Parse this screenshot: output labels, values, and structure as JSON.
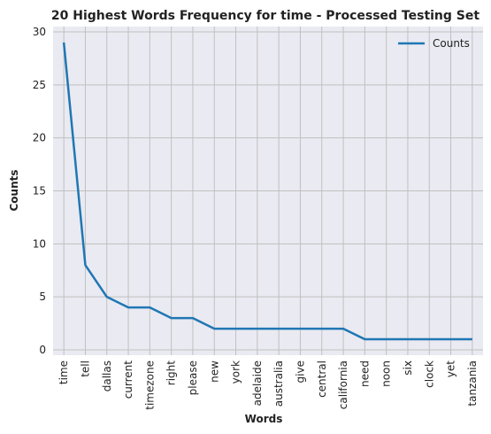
{
  "chart_data": {
    "type": "line",
    "title": "20 Highest Words Frequency for time - Processed Testing Set",
    "xlabel": "Words",
    "ylabel": "Counts",
    "categories": [
      "time",
      "tell",
      "dallas",
      "current",
      "timezone",
      "right",
      "please",
      "new",
      "york",
      "adelaide",
      "australia",
      "give",
      "central",
      "california",
      "need",
      "noon",
      "six",
      "clock",
      "yet",
      "tanzania"
    ],
    "series": [
      {
        "name": "Counts",
        "values": [
          29,
          8,
          5,
          4,
          4,
          3,
          3,
          2,
          2,
          2,
          2,
          2,
          2,
          2,
          1,
          1,
          1,
          1,
          1,
          1
        ]
      }
    ],
    "ylim": [
      -0.5,
      30.5
    ],
    "yticks": [
      0,
      5,
      10,
      15,
      20,
      25,
      30
    ],
    "grid": true,
    "legend_position": "top-right",
    "colors": {
      "line": "#1f77b4",
      "plot_bg": "#eaeaf2",
      "grid": "#c0c0c0"
    }
  }
}
